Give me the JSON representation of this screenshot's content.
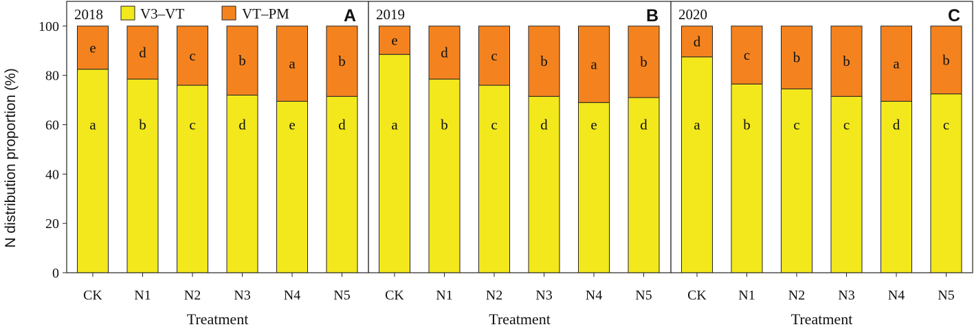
{
  "colors": {
    "v3vt": "#f2e81c",
    "vtpm": "#f4831f",
    "frame": "#222222"
  },
  "y_axis_label": "N distribution proportion (%)",
  "legend": [
    "V3–VT",
    "VT–PM"
  ],
  "chart_data": [
    {
      "type": "bar",
      "stacked": true,
      "title": "2018",
      "panel_letter": "A",
      "categories": [
        "CK",
        "N1",
        "N2",
        "N3",
        "N4",
        "N5"
      ],
      "series": [
        {
          "name": "V3–VT",
          "values": [
            82.5,
            78.5,
            76.0,
            72.0,
            69.5,
            71.5
          ],
          "letters": [
            "a",
            "b",
            "c",
            "d",
            "e",
            "d"
          ]
        },
        {
          "name": "VT–PM",
          "values": [
            17.5,
            21.5,
            24.0,
            28.0,
            30.5,
            28.5
          ],
          "letters": [
            "e",
            "d",
            "c",
            "b",
            "a",
            "b"
          ]
        }
      ],
      "xlabel": "Treatment",
      "ylabel": "N distribution proportion (%)",
      "ylim": [
        0,
        110
      ],
      "yticks": [
        0,
        20,
        40,
        60,
        80,
        100
      ]
    },
    {
      "type": "bar",
      "stacked": true,
      "title": "2019",
      "panel_letter": "B",
      "categories": [
        "CK",
        "N1",
        "N2",
        "N3",
        "N4",
        "N5"
      ],
      "series": [
        {
          "name": "V3–VT",
          "values": [
            88.5,
            78.5,
            76.0,
            71.5,
            69.0,
            71.0
          ],
          "letters": [
            "a",
            "b",
            "c",
            "d",
            "e",
            "d"
          ]
        },
        {
          "name": "VT–PM",
          "values": [
            11.5,
            21.5,
            24.0,
            28.5,
            31.0,
            29.0
          ],
          "letters": [
            "e",
            "d",
            "c",
            "b",
            "a",
            "b"
          ]
        }
      ],
      "xlabel": "Treatment",
      "ylim": [
        0,
        110
      ]
    },
    {
      "type": "bar",
      "stacked": true,
      "title": "2020",
      "panel_letter": "C",
      "categories": [
        "CK",
        "N1",
        "N2",
        "N3",
        "N4",
        "N5"
      ],
      "series": [
        {
          "name": "V3–VT",
          "values": [
            87.5,
            76.5,
            74.5,
            71.5,
            69.5,
            72.5
          ],
          "letters": [
            "a",
            "b",
            "c",
            "c",
            "d",
            "c"
          ]
        },
        {
          "name": "VT–PM",
          "values": [
            12.5,
            23.5,
            25.5,
            28.5,
            30.5,
            27.5
          ],
          "letters": [
            "d",
            "c",
            "b",
            "b",
            "a",
            "b"
          ]
        }
      ],
      "xlabel": "Treatment",
      "ylim": [
        0,
        110
      ]
    }
  ]
}
